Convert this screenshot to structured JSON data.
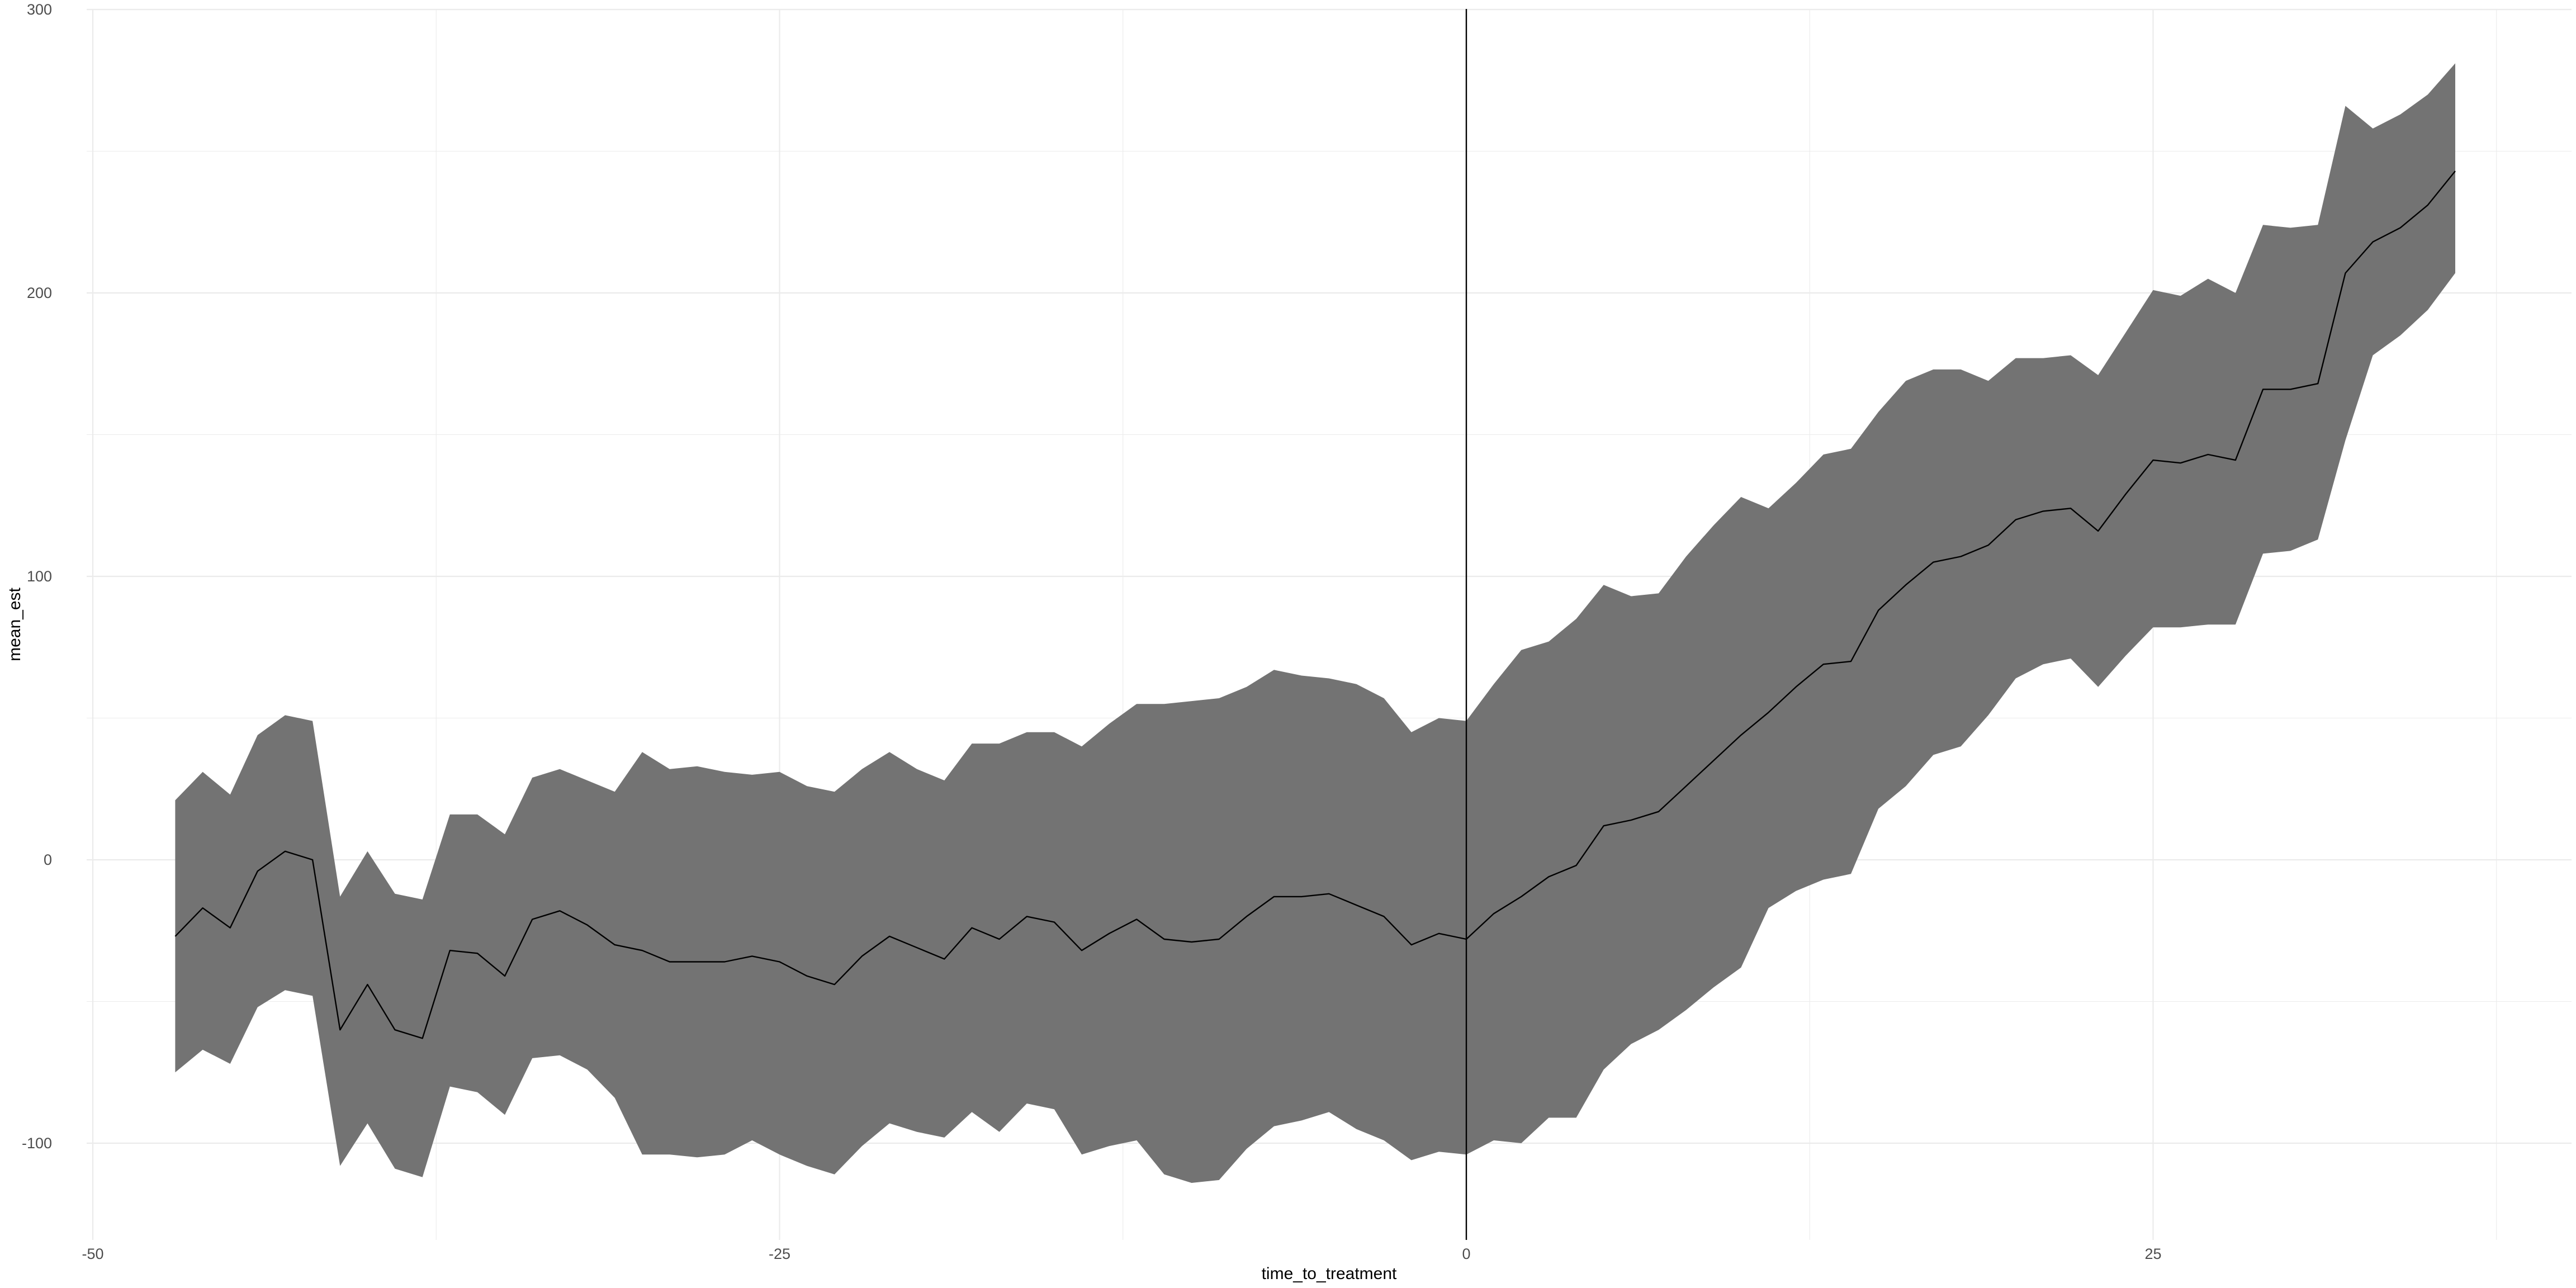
{
  "chart_data": {
    "type": "area",
    "title": "",
    "xlabel": "time_to_treatment",
    "ylabel": "mean_est",
    "xlim": [
      -52,
      40
    ],
    "ylim": [
      -130,
      300
    ],
    "x_ticks": [
      -50,
      -25,
      0,
      25
    ],
    "y_ticks": [
      -100,
      0,
      100,
      200,
      300
    ],
    "vline": 0,
    "grid": true,
    "legend": "none",
    "colors": {
      "ribbon": "#737373",
      "line": "#000000",
      "grid": "#ebebeb",
      "vline": "#000000"
    },
    "series": [
      {
        "x": [
          -47,
          -46,
          -45,
          -44,
          -43,
          -42,
          -41,
          -40,
          -39,
          -38,
          -37,
          -36,
          -35,
          -34,
          -33,
          -32,
          -31,
          -30,
          -29,
          -28,
          -27,
          -26,
          -25,
          -24,
          -23,
          -22,
          -21,
          -20,
          -19,
          -18,
          -17,
          -16,
          -15,
          -14,
          -13,
          -12,
          -11,
          -10,
          -9,
          -8,
          -7,
          -6,
          -5,
          -4,
          -3,
          -2,
          -1,
          0,
          1,
          2,
          3,
          4,
          5,
          6,
          7,
          8,
          9,
          10,
          11,
          12,
          13,
          14,
          15,
          16,
          17,
          18,
          19,
          20,
          21,
          22,
          23,
          24,
          25,
          26,
          27,
          28,
          29,
          30,
          31,
          32,
          33,
          34,
          35,
          36
        ],
        "y": [
          -27,
          -17,
          -24,
          -4,
          3,
          0,
          -60,
          -44,
          -60,
          -63,
          -32,
          -33,
          -41,
          -21,
          -18,
          -23,
          -30,
          -32,
          -36,
          -36,
          -36,
          -34,
          -36,
          -41,
          -44,
          -34,
          -27,
          -31,
          -35,
          -24,
          -28,
          -20,
          -22,
          -32,
          -26,
          -21,
          -28,
          -29,
          -28,
          -20,
          -13,
          -13,
          -12,
          -16,
          -20,
          -30,
          -26,
          -28,
          -19,
          -13,
          -6,
          -2,
          12,
          14,
          17,
          26,
          35,
          44,
          52,
          61,
          69,
          70,
          88,
          97,
          105,
          107,
          111,
          120,
          123,
          124,
          116,
          129,
          141,
          140,
          143,
          141,
          166,
          166,
          168,
          207,
          218,
          223,
          231,
          243
        ],
        "lower": [
          -75,
          -67,
          -72,
          -52,
          -46,
          -48,
          -108,
          -93,
          -109,
          -112,
          -80,
          -82,
          -90,
          -70,
          -69,
          -74,
          -84,
          -104,
          -104,
          -105,
          -104,
          -99,
          -104,
          -108,
          -111,
          -101,
          -93,
          -96,
          -98,
          -89,
          -96,
          -86,
          -88,
          -104,
          -101,
          -99,
          -111,
          -114,
          -113,
          -102,
          -94,
          -92,
          -89,
          -95,
          -99,
          -106,
          -103,
          -104,
          -99,
          -100,
          -91,
          -91,
          -74,
          -65,
          -60,
          -53,
          -45,
          -38,
          -17,
          -11,
          -7,
          -5,
          18,
          26,
          37,
          40,
          51,
          64,
          69,
          71,
          61,
          72,
          82,
          82,
          83,
          83,
          108,
          109,
          113,
          148,
          178,
          185,
          194,
          207
        ],
        "upper": [
          21,
          31,
          23,
          44,
          51,
          49,
          -13,
          3,
          -12,
          -14,
          16,
          16,
          9,
          29,
          32,
          28,
          24,
          38,
          32,
          33,
          31,
          30,
          31,
          26,
          24,
          32,
          38,
          32,
          28,
          41,
          41,
          45,
          45,
          40,
          48,
          55,
          55,
          56,
          57,
          61,
          67,
          65,
          64,
          62,
          57,
          45,
          50,
          49,
          62,
          74,
          77,
          85,
          97,
          93,
          94,
          107,
          118,
          128,
          124,
          133,
          143,
          145,
          158,
          169,
          173,
          173,
          169,
          177,
          177,
          178,
          171,
          186,
          201,
          199,
          205,
          200,
          224,
          223,
          224,
          266,
          258,
          263,
          270,
          281
        ]
      }
    ]
  }
}
